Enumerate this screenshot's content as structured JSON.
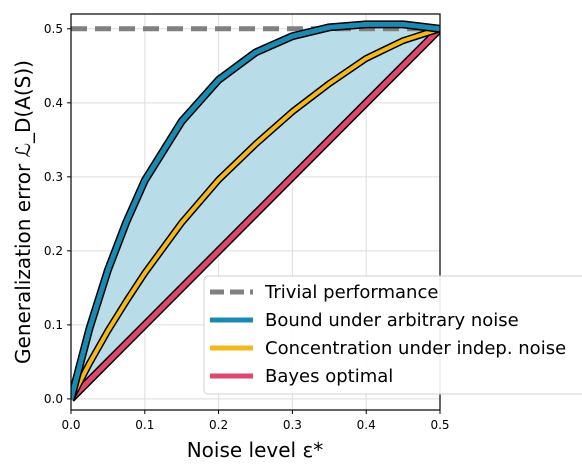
{
  "chart_data": {
    "type": "line",
    "xlabel": "Noise level ε*",
    "ylabel": "Generalization error ℒ_D(A(S))",
    "xlim": [
      0,
      0.5
    ],
    "ylim": [
      -0.015,
      0.52
    ],
    "x_ticks": [
      "0.0",
      "0.1",
      "0.2",
      "0.3",
      "0.4",
      "0.5"
    ],
    "y_ticks": [
      "0.0",
      "0.1",
      "0.2",
      "0.3",
      "0.4",
      "0.5"
    ],
    "grid": true,
    "legend_position": "bottom-right",
    "series": [
      {
        "name": "Trivial performance",
        "color": "#808080",
        "style": "dashed",
        "x": [
          0.0,
          0.5
        ],
        "y": [
          0.5,
          0.5
        ]
      },
      {
        "name": "Bound under arbitrary noise",
        "color": "#1a8ab3",
        "style": "solid",
        "x": [
          0.0,
          0.025,
          0.05,
          0.075,
          0.1,
          0.15,
          0.2,
          0.25,
          0.3,
          0.35,
          0.4,
          0.45,
          0.5
        ],
        "y": [
          0.0,
          0.095,
          0.174,
          0.239,
          0.295,
          0.375,
          0.431,
          0.468,
          0.49,
          0.502,
          0.506,
          0.506,
          0.5
        ]
      },
      {
        "name": "Concentration under indep. noise",
        "color": "#f5b81c",
        "style": "solid",
        "x": [
          0.0,
          0.025,
          0.05,
          0.075,
          0.1,
          0.15,
          0.2,
          0.25,
          0.3,
          0.35,
          0.4,
          0.45,
          0.5
        ],
        "y": [
          0.0,
          0.048,
          0.092,
          0.132,
          0.17,
          0.238,
          0.296,
          0.344,
          0.388,
          0.426,
          0.46,
          0.484,
          0.5
        ]
      },
      {
        "name": "Bayes optimal",
        "color": "#e0476e",
        "style": "solid",
        "x": [
          0.0,
          0.5
        ],
        "y": [
          0.0,
          0.5
        ]
      }
    ],
    "shaded_region": {
      "color": "#b9dde8",
      "between": [
        "Bayes optimal",
        "Bound under arbitrary noise"
      ]
    }
  }
}
